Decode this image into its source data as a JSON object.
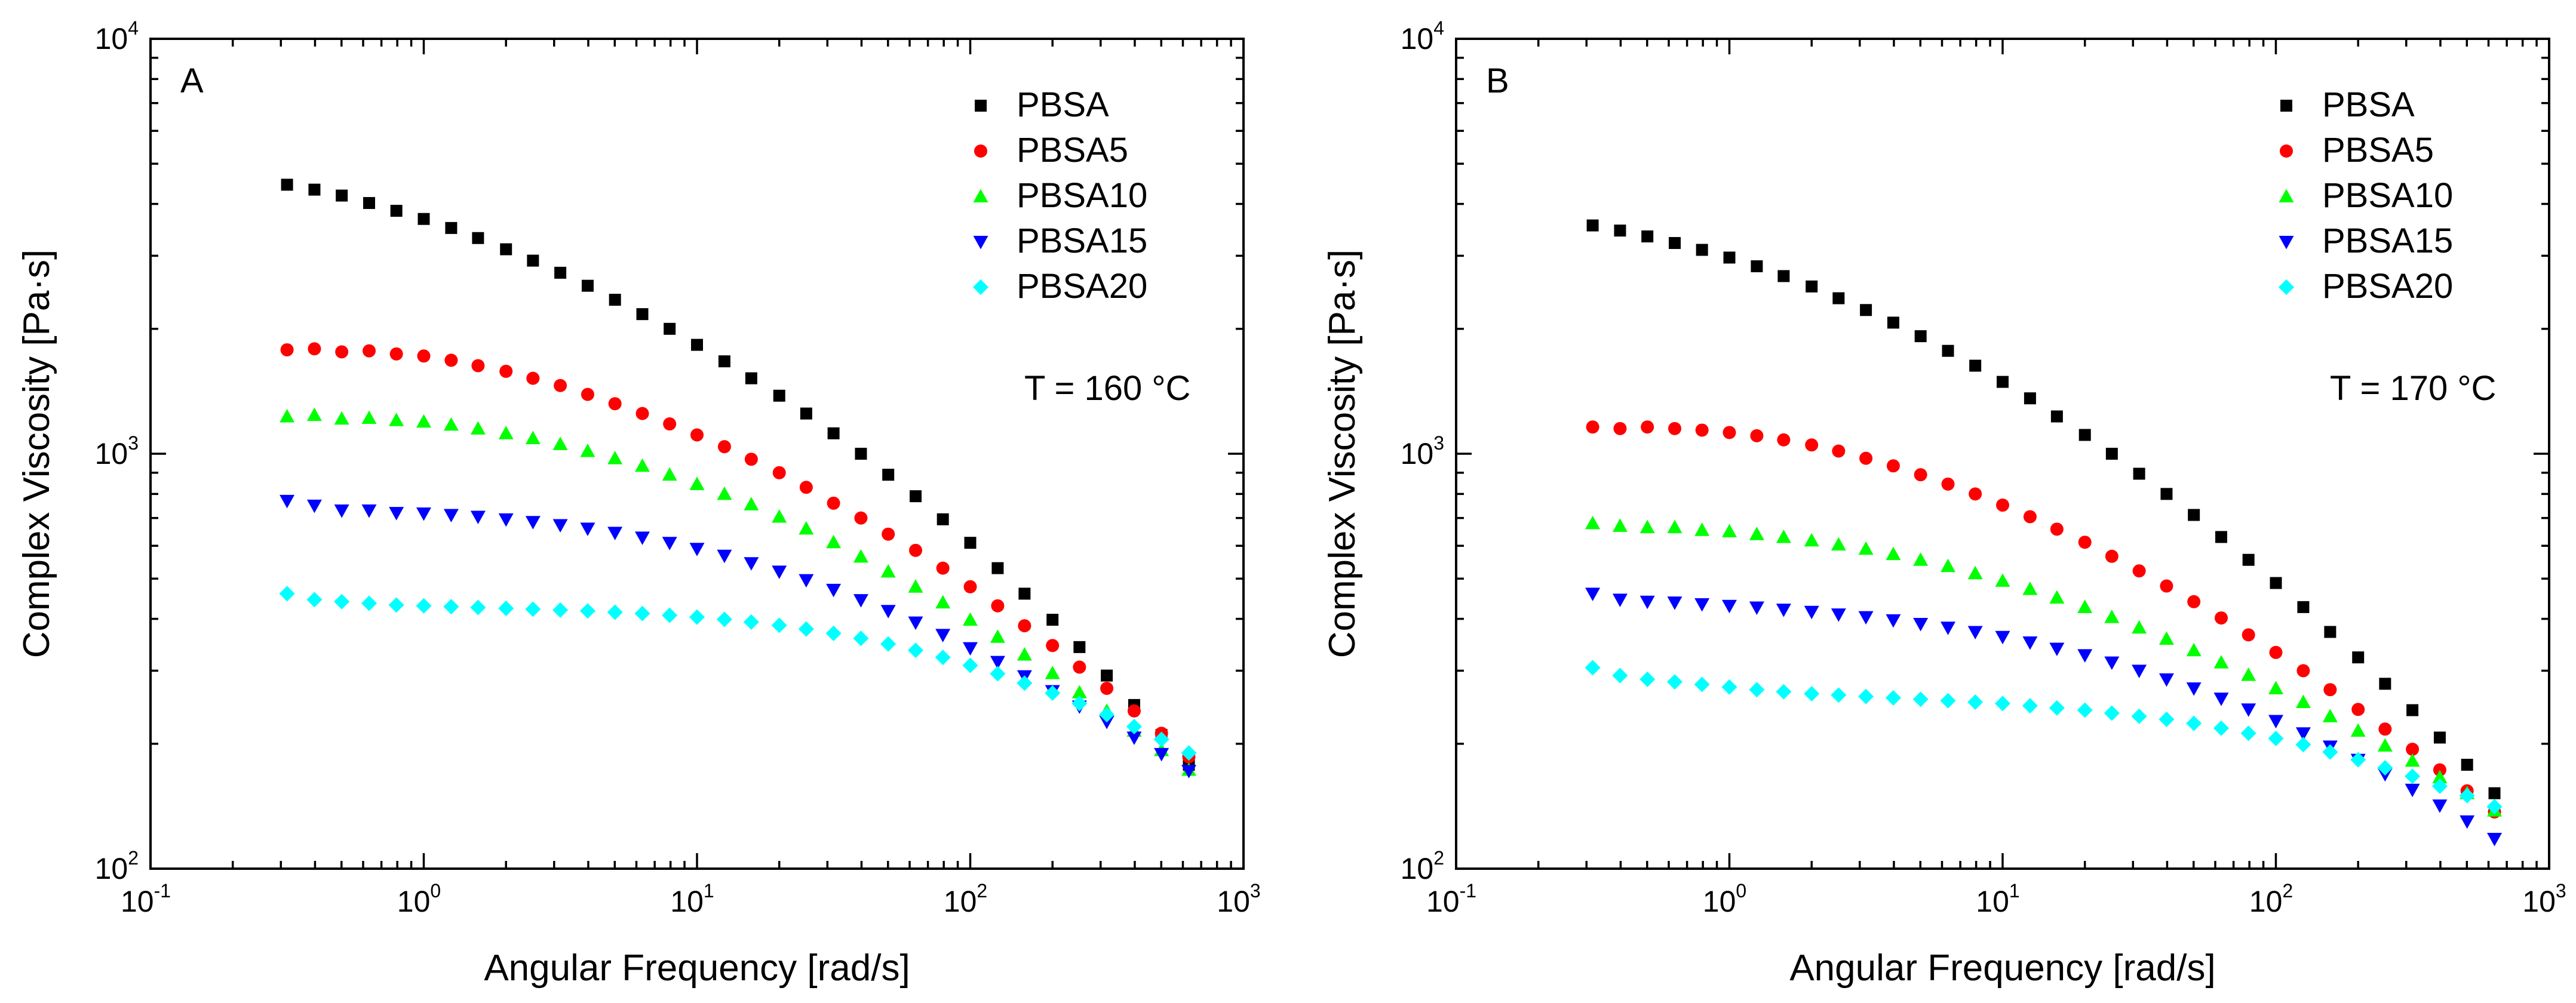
{
  "chart_data": [
    {
      "type": "scatter",
      "panel_label": "A",
      "annotation": "T = 160 °C",
      "xlabel": "Angular Frequency [rad/s]",
      "ylabel": "Complex Viscosity [Pa·s]",
      "xscale": "log",
      "yscale": "log",
      "xlim": [
        0.1,
        1000
      ],
      "ylim": [
        100,
        10000
      ],
      "x_ticks": [
        {
          "base": "10",
          "exp": "-1"
        },
        {
          "base": "10",
          "exp": "0"
        },
        {
          "base": "10",
          "exp": "1"
        },
        {
          "base": "10",
          "exp": "2"
        },
        {
          "base": "10",
          "exp": "3"
        }
      ],
      "y_ticks": [
        {
          "base": "10",
          "exp": "2"
        },
        {
          "base": "10",
          "exp": "3"
        },
        {
          "base": "10",
          "exp": "4"
        }
      ],
      "legend_position": "top-right",
      "x": [
        0.316,
        0.398,
        0.501,
        0.631,
        0.794,
        1.0,
        1.26,
        1.58,
        2.0,
        2.51,
        3.16,
        3.98,
        5.01,
        6.31,
        7.94,
        10.0,
        12.6,
        15.8,
        20.0,
        25.1,
        31.6,
        39.8,
        50.1,
        63.1,
        79.4,
        100,
        126,
        158,
        200,
        251,
        316,
        398,
        501,
        631
      ],
      "series": [
        {
          "name": "PBSA",
          "marker": "square",
          "color": "#000000",
          "values": [
            4450,
            4330,
            4190,
            4020,
            3850,
            3680,
            3500,
            3310,
            3110,
            2920,
            2730,
            2540,
            2350,
            2170,
            2000,
            1830,
            1670,
            1520,
            1380,
            1250,
            1120,
            1000,
            890,
            790,
            695,
            610,
            530,
            460,
            398,
            342,
            292,
            248,
            210,
            178
          ]
        },
        {
          "name": "PBSA5",
          "marker": "circle",
          "color": "#ff0000",
          "values": [
            1780,
            1790,
            1760,
            1770,
            1740,
            1720,
            1680,
            1630,
            1580,
            1520,
            1460,
            1390,
            1320,
            1250,
            1180,
            1110,
            1040,
            970,
            900,
            830,
            760,
            700,
            640,
            585,
            530,
            478,
            430,
            385,
            345,
            306,
            272,
            240,
            212,
            186
          ]
        },
        {
          "name": "PBSA10",
          "marker": "triangle-up",
          "color": "#00ff00",
          "values": [
            1230,
            1240,
            1215,
            1220,
            1205,
            1195,
            1175,
            1150,
            1120,
            1090,
            1055,
            1015,
            975,
            935,
            890,
            845,
            800,
            755,
            705,
            660,
            612,
            565,
            520,
            478,
            438,
            398,
            362,
            328,
            296,
            266,
            240,
            215,
            193,
            173
          ]
        },
        {
          "name": "PBSA15",
          "marker": "triangle-down",
          "color": "#0000ff",
          "values": [
            770,
            750,
            730,
            730,
            720,
            718,
            712,
            705,
            695,
            685,
            673,
            660,
            645,
            628,
            610,
            590,
            568,
            545,
            520,
            496,
            470,
            444,
            418,
            392,
            366,
            340,
            315,
            291,
            268,
            246,
            226,
            207,
            189,
            172
          ]
        },
        {
          "name": "PBSA20",
          "marker": "diamond",
          "color": "#00ffff",
          "values": [
            460,
            445,
            440,
            436,
            432,
            430,
            428,
            426,
            424,
            422,
            420,
            418,
            415,
            412,
            408,
            404,
            399,
            393,
            386,
            378,
            369,
            359,
            348,
            336,
            323,
            309,
            295,
            280,
            265,
            250,
            235,
            220,
            205,
            190
          ]
        }
      ]
    },
    {
      "type": "scatter",
      "panel_label": "B",
      "annotation": "T = 170 °C",
      "xlabel": "Angular Frequency [rad/s]",
      "ylabel": "Complex Viscosity [Pa·s]",
      "xscale": "log",
      "yscale": "log",
      "xlim": [
        0.1,
        1000
      ],
      "ylim": [
        100,
        10000
      ],
      "x_ticks": [
        {
          "base": "10",
          "exp": "-1"
        },
        {
          "base": "10",
          "exp": "0"
        },
        {
          "base": "10",
          "exp": "1"
        },
        {
          "base": "10",
          "exp": "2"
        },
        {
          "base": "10",
          "exp": "3"
        }
      ],
      "y_ticks": [
        {
          "base": "10",
          "exp": "2"
        },
        {
          "base": "10",
          "exp": "3"
        },
        {
          "base": "10",
          "exp": "4"
        }
      ],
      "legend_position": "top-right",
      "x": [
        0.316,
        0.398,
        0.501,
        0.631,
        0.794,
        1.0,
        1.26,
        1.58,
        2.0,
        2.51,
        3.16,
        3.98,
        5.01,
        6.31,
        7.94,
        10.0,
        12.6,
        15.8,
        20.0,
        25.1,
        31.6,
        39.8,
        50.1,
        63.1,
        79.4,
        100,
        126,
        158,
        200,
        251,
        316,
        398,
        501,
        631
      ],
      "series": [
        {
          "name": "PBSA",
          "marker": "square",
          "color": "#000000",
          "values": [
            3550,
            3450,
            3340,
            3220,
            3100,
            2970,
            2830,
            2680,
            2530,
            2370,
            2220,
            2070,
            1920,
            1770,
            1630,
            1490,
            1360,
            1230,
            1110,
            1000,
            895,
            800,
            712,
            630,
            555,
            488,
            427,
            372,
            323,
            279,
            241,
            207,
            178,
            152
          ]
        },
        {
          "name": "PBSA5",
          "marker": "circle",
          "color": "#ff0000",
          "values": [
            1160,
            1150,
            1160,
            1150,
            1140,
            1125,
            1105,
            1080,
            1050,
            1015,
            975,
            935,
            890,
            845,
            800,
            752,
            705,
            658,
            612,
            566,
            522,
            480,
            440,
            402,
            366,
            332,
            300,
            270,
            242,
            217,
            194,
            173,
            154,
            137
          ]
        },
        {
          "name": "PBSA10",
          "marker": "triangle-up",
          "color": "#00ff00",
          "values": [
            680,
            670,
            665,
            665,
            655,
            650,
            640,
            630,
            618,
            604,
            590,
            573,
            555,
            536,
            515,
            494,
            472,
            450,
            427,
            404,
            381,
            358,
            336,
            314,
            293,
            272,
            252,
            233,
            215,
            198,
            182,
            166,
            152,
            138
          ]
        },
        {
          "name": "PBSA15",
          "marker": "triangle-down",
          "color": "#0000ff",
          "values": [
            460,
            445,
            440,
            438,
            434,
            430,
            426,
            421,
            416,
            410,
            404,
            397,
            389,
            381,
            372,
            362,
            351,
            339,
            327,
            314,
            300,
            286,
            272,
            257,
            242,
            227,
            212,
            197,
            183,
            169,
            155,
            142,
            130,
            118
          ]
        },
        {
          "name": "PBSA20",
          "marker": "diamond",
          "color": "#00ffff",
          "values": [
            305,
            292,
            286,
            282,
            278,
            274,
            270,
            267,
            264,
            262,
            260,
            258,
            256,
            254,
            252,
            250,
            247,
            244,
            241,
            237,
            233,
            229,
            224,
            218,
            212,
            206,
            199,
            191,
            183,
            175,
            167,
            158,
            150,
            141
          ]
        }
      ]
    }
  ]
}
